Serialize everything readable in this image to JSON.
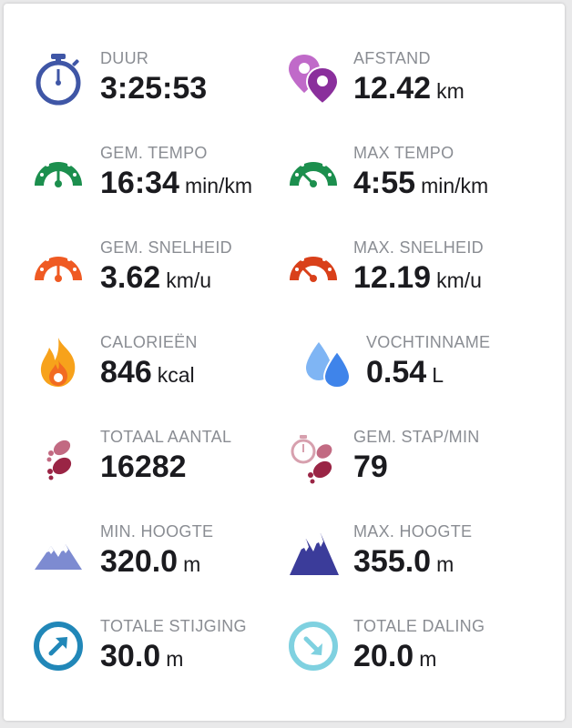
{
  "stats": [
    {
      "label": "DUUR",
      "value": "3:25:53",
      "unit": "",
      "icon": "stopwatch-icon"
    },
    {
      "label": "AFSTAND",
      "value": "12.42",
      "unit": "km",
      "icon": "location-pins-icon"
    },
    {
      "label": "GEM. TEMPO",
      "value": "16:34",
      "unit": "min/km",
      "icon": "speedometer-green-icon"
    },
    {
      "label": "MAX TEMPO",
      "value": "4:55",
      "unit": "min/km",
      "icon": "speedometer-green-max-icon"
    },
    {
      "label": "GEM. SNELHEID",
      "value": "3.62",
      "unit": "km/u",
      "icon": "speedometer-orange-icon"
    },
    {
      "label": "MAX. SNELHEID",
      "value": "12.19",
      "unit": "km/u",
      "icon": "speedometer-orange-max-icon"
    },
    {
      "label": "CALORIEËN",
      "value": "846",
      "unit": "kcal",
      "icon": "flame-icon"
    },
    {
      "label": "VOCHTINNAME",
      "value": "0.54",
      "unit": "L",
      "icon": "water-drops-icon"
    },
    {
      "label": "TOTAAL AANTAL",
      "value": "16282",
      "unit": "",
      "icon": "footsteps-icon"
    },
    {
      "label": "GEM. STAP/MIN",
      "value": "79",
      "unit": "",
      "icon": "footsteps-timer-icon"
    },
    {
      "label": "MIN. HOOGTE",
      "value": "320.0",
      "unit": "m",
      "icon": "mountain-light-icon"
    },
    {
      "label": "MAX. HOOGTE",
      "value": "355.0",
      "unit": "m",
      "icon": "mountain-dark-icon"
    },
    {
      "label": "TOTALE STIJGING",
      "value": "30.0",
      "unit": "m",
      "icon": "ascent-arrow-icon"
    },
    {
      "label": "TOTALE DALING",
      "value": "20.0",
      "unit": "m",
      "icon": "descent-arrow-icon"
    }
  ],
  "colors": {
    "label": "#8a8d93",
    "value": "#1b1b1f",
    "stopwatch": "#3f56a6",
    "pin_light": "#c06ac9",
    "pin_dark": "#8a2f9c",
    "green": "#1c8f4e",
    "orange": "#ef5a23",
    "orange_dark": "#d9401a",
    "flame_outer": "#f7a21b",
    "flame_inner": "#f26b21",
    "water_light": "#7fb5f4",
    "water_dark": "#3f84ea",
    "steps_light": "#c26a82",
    "steps_dark": "#9a2545",
    "mountain_light": "#7d8bd1",
    "mountain_dark": "#3b3c9a",
    "ascent": "#2187b8",
    "descent": "#7fd1e0"
  }
}
